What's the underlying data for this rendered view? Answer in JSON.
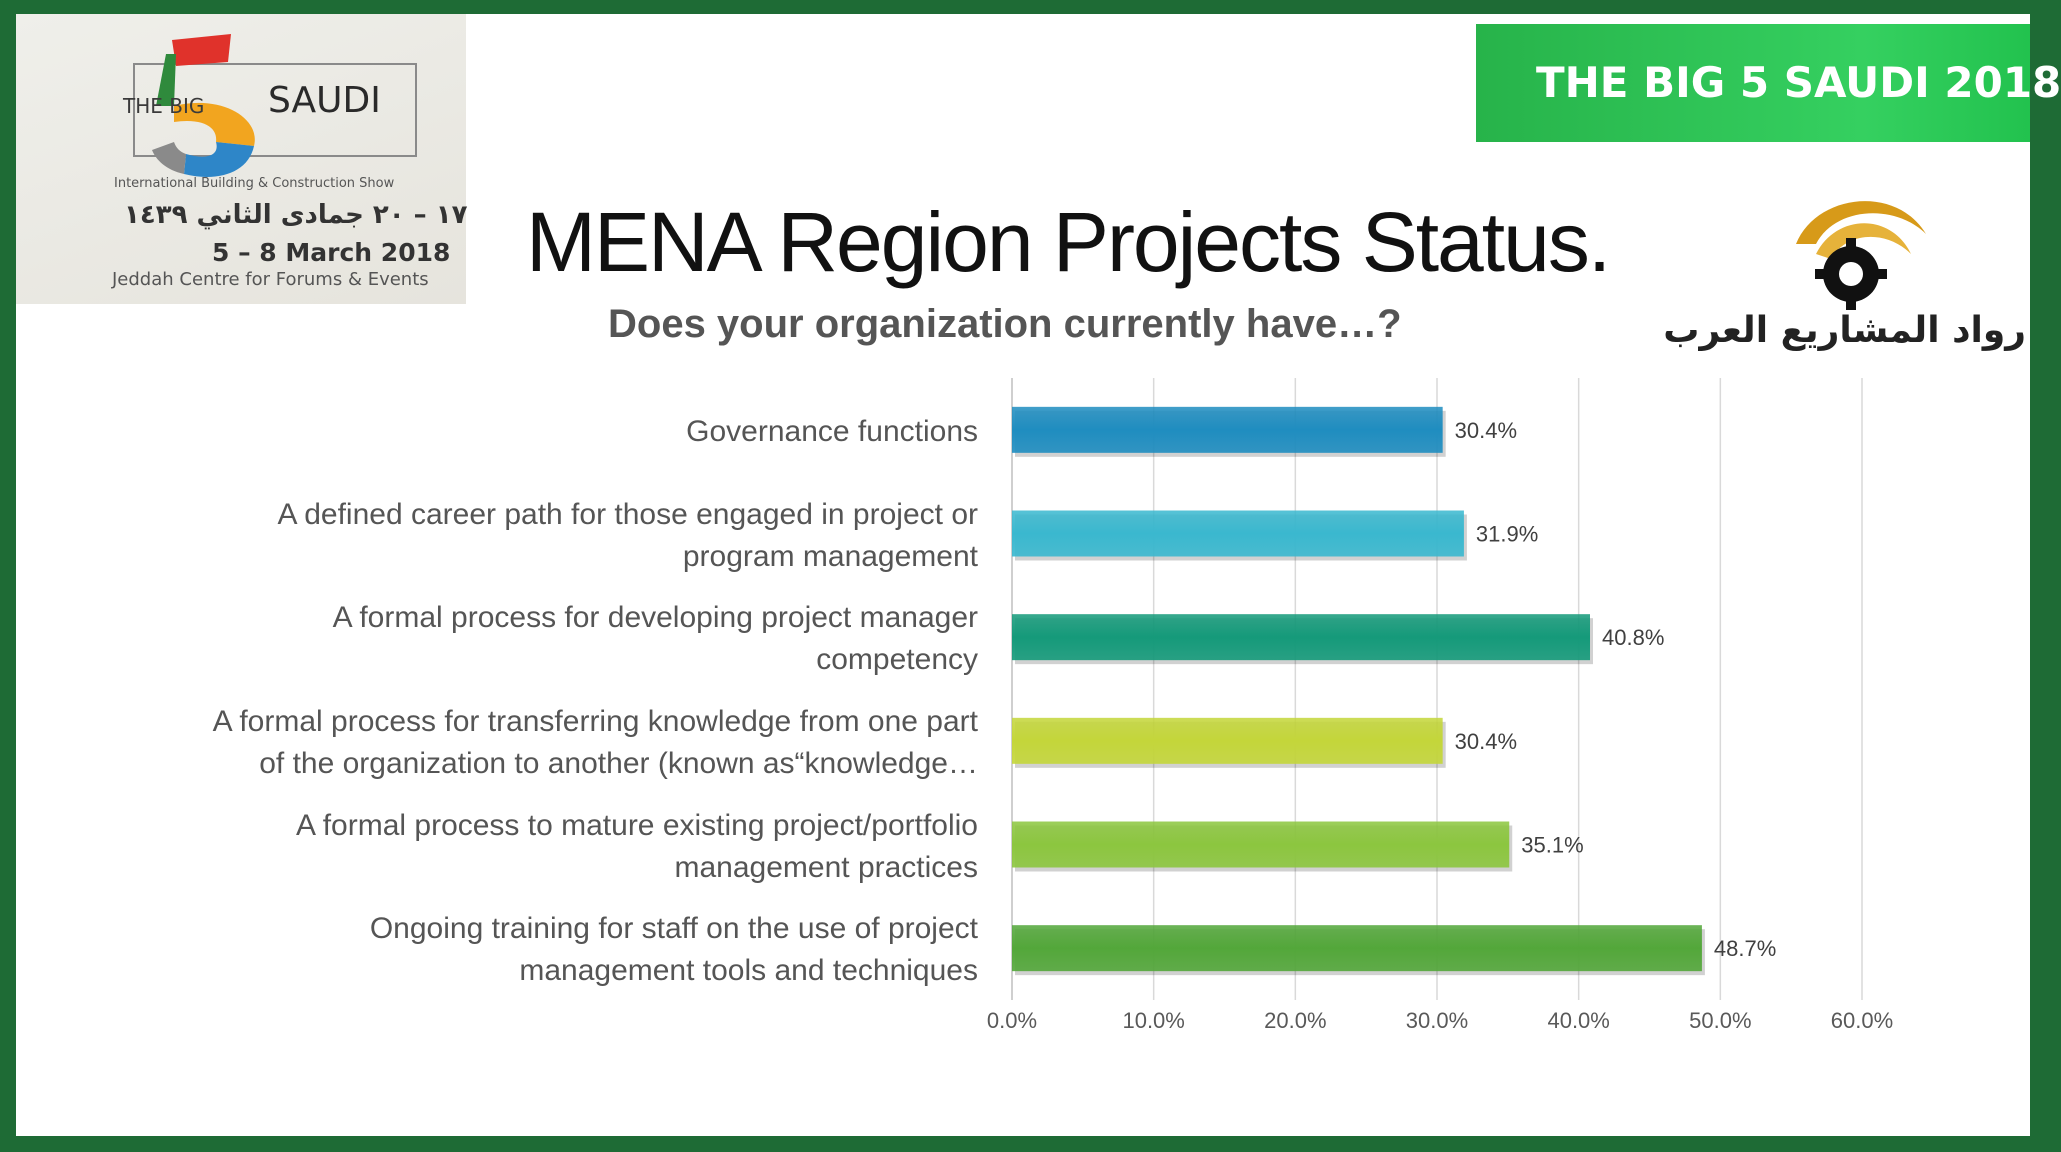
{
  "event_logo": {
    "the_big": "THE BIG",
    "number": "5",
    "saudi": "SAUDI",
    "tagline": "International Building & Construction Show",
    "arabic_dates": "١٧ – ٢٠ جمادى الثاني ١٤٣٩",
    "dates": "5 – 8 March 2018",
    "venue": "Jeddah Centre for Forums & Events"
  },
  "banner": {
    "text": "THE BIG 5 SAUDI 2018",
    "color": "#2bbf52"
  },
  "header": {
    "title": "MENA Region Projects Status.",
    "subtitle": "Does your organization currently have…?"
  },
  "org_logo": {
    "name": "رواد المشاريع العرب",
    "icon": "gear-sunrise-icon"
  },
  "chart_data": {
    "type": "bar",
    "orientation": "horizontal",
    "categories": [
      "Governance functions",
      "A defined career path for those engaged in project or program management",
      "A formal process for developing project manager competency",
      "A formal process for transferring knowledge from one part of the organization to another (known as“knowledge…",
      "A formal process to mature existing project/portfolio management practices",
      "Ongoing training for staff on the use of project management tools and techniques"
    ],
    "category_lines": [
      [
        "Governance functions"
      ],
      [
        "A defined career path for those engaged in project or",
        "program management"
      ],
      [
        "A formal process for developing project manager",
        "competency"
      ],
      [
        "A formal process for transferring knowledge from one part",
        "of the organization to another (known as“knowledge…"
      ],
      [
        "A formal process to mature existing project/portfolio",
        "management practices"
      ],
      [
        "Ongoing training for staff on the use of project",
        "management tools and techniques"
      ]
    ],
    "values": [
      30.4,
      31.9,
      40.8,
      30.4,
      35.1,
      48.7
    ],
    "value_labels": [
      "30.4%",
      "31.9%",
      "40.8%",
      "30.4%",
      "35.1%",
      "48.7%"
    ],
    "bar_colors": [
      "#1f8dc0",
      "#3ab8cf",
      "#159a7a",
      "#c4d63a",
      "#8cc63f",
      "#53a73a"
    ],
    "xlim": [
      0,
      60
    ],
    "ticks": [
      0,
      10,
      20,
      30,
      40,
      50,
      60
    ],
    "tick_labels": [
      "0.0%",
      "10.0%",
      "20.0%",
      "30.0%",
      "40.0%",
      "50.0%",
      "60.0%"
    ],
    "grid": true,
    "legend": "none"
  }
}
